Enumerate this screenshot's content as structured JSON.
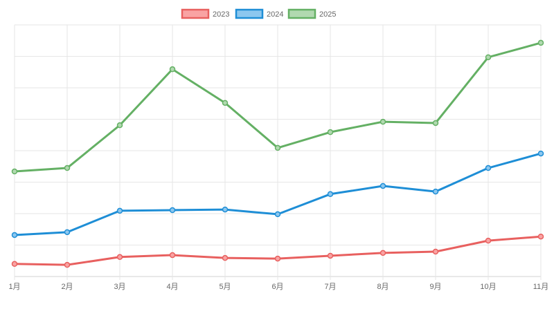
{
  "chart_data": {
    "type": "line",
    "categories": [
      "1月",
      "2月",
      "3月",
      "4月",
      "5月",
      "6月",
      "7月",
      "8月",
      "9月",
      "10月",
      "11月"
    ],
    "ylim": [
      0,
      8
    ],
    "y_ticks_shown": false,
    "grid": true,
    "legend_position": "top",
    "series": [
      {
        "name": "2023",
        "color": "#e8605f",
        "fill": "#f9a3a3",
        "values": [
          0.4,
          0.37,
          0.62,
          0.68,
          0.59,
          0.57,
          0.66,
          0.75,
          0.79,
          1.14,
          1.27
        ]
      },
      {
        "name": "2024",
        "color": "#1e8ed6",
        "fill": "#8cc7ef",
        "values": [
          1.32,
          1.41,
          2.09,
          2.11,
          2.13,
          1.98,
          2.62,
          2.88,
          2.7,
          3.45,
          3.91
        ]
      },
      {
        "name": "2025",
        "color": "#64b064",
        "fill": "#b1d9b0",
        "values": [
          3.34,
          3.45,
          4.81,
          6.59,
          5.52,
          4.09,
          4.59,
          4.92,
          4.88,
          6.97,
          7.43
        ]
      }
    ]
  }
}
